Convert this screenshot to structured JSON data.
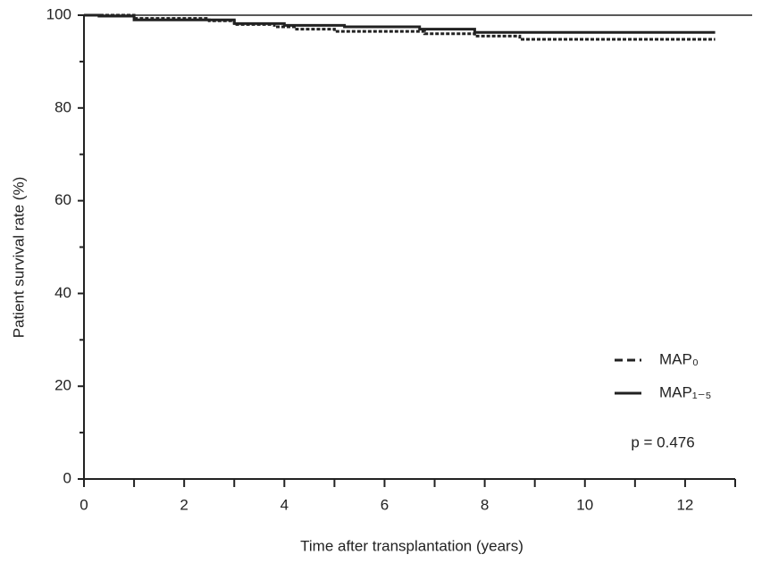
{
  "chart_data": {
    "type": "step",
    "x_label": "Time after transplantation (years)",
    "y_label": "Patient survival rate (%)",
    "annotation": "p = 0.476",
    "xlim": [
      0,
      13
    ],
    "ylim": [
      0,
      100
    ],
    "xticks": [
      0,
      2,
      4,
      6,
      8,
      10,
      12
    ],
    "xminor": [
      1,
      3,
      5,
      7,
      9,
      11,
      13
    ],
    "yticks": [
      0,
      20,
      40,
      60,
      80,
      100
    ],
    "yminor": [
      10,
      30,
      50,
      70,
      90
    ],
    "series": [
      {
        "name": "MAP₀",
        "color": "#222222",
        "dash": true,
        "x": [
          0,
          1.0,
          2.5,
          3.0,
          3.8,
          4.2,
          5.0,
          6.8,
          7.8,
          8.7,
          12.6
        ],
        "values": [
          100,
          99.3,
          98.8,
          98.0,
          97.5,
          97.0,
          96.5,
          96.0,
          95.5,
          94.8,
          94.8
        ]
      },
      {
        "name": "MAP₁₋₅",
        "color": "#222222",
        "dash": false,
        "x": [
          0,
          0.3,
          1.0,
          3.0,
          4.0,
          5.2,
          6.7,
          7.8,
          12.6
        ],
        "values": [
          100,
          99.8,
          99.0,
          98.2,
          97.8,
          97.5,
          97.0,
          96.3,
          96.3
        ]
      }
    ]
  }
}
